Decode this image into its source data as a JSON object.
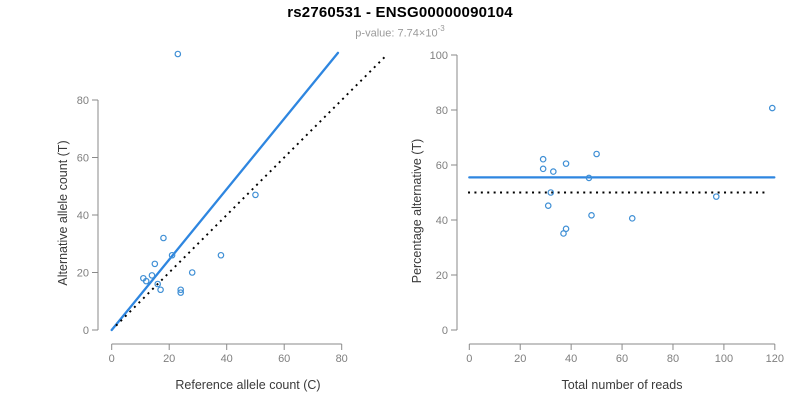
{
  "header": {
    "title": "rs2760531 - ENSG00000090104",
    "pvalue_label": "p-value: 7.74×10",
    "pvalue_exponent": "-3"
  },
  "colors": {
    "line_blue": "#2e86e0",
    "point_blue": "#3f8fd5",
    "dotted_black": "#000000",
    "axis_line": "#8a8a8a",
    "tick_label": "#7f7f7f",
    "axis_title": "#3a3a3a",
    "title_text": "#000000",
    "subtitle_text": "#9a9a9a",
    "background": "#ffffff"
  },
  "chart_data": [
    {
      "id": "allele-counts",
      "type": "scatter",
      "title": "",
      "xlabel": "Reference allele count (C)",
      "ylabel": "Alternative allele count (T)",
      "xticks": [
        0,
        20,
        40,
        60,
        80
      ],
      "yticks": [
        0,
        20,
        40,
        60,
        80
      ],
      "xlim": [
        -4,
        96
      ],
      "ylim": [
        -4,
        96
      ],
      "grid": false,
      "legend": "none",
      "points": [
        [
          23,
          96
        ],
        [
          50,
          47
        ],
        [
          38,
          26
        ],
        [
          28,
          20
        ],
        [
          24,
          14
        ],
        [
          24,
          13
        ],
        [
          21,
          26
        ],
        [
          18,
          32
        ],
        [
          17,
          14
        ],
        [
          16,
          16
        ],
        [
          15,
          23
        ],
        [
          14,
          19
        ],
        [
          12,
          17
        ],
        [
          11,
          18
        ]
      ],
      "lines": [
        {
          "name": "fitted-ratio-line",
          "style": "solid-blue",
          "x1": 0,
          "y1": 0,
          "x2": 78.7,
          "y2": 96.4
        },
        {
          "name": "identity-line",
          "style": "dotted-black",
          "x1": 1.5,
          "y1": 1.5,
          "x2": 95.8,
          "y2": 95.8
        }
      ]
    },
    {
      "id": "percentage-vs-reads",
      "type": "scatter",
      "title": "",
      "xlabel": "Total number of reads",
      "ylabel": "Percentage alternative (T)",
      "xticks": [
        0,
        20,
        40,
        60,
        80,
        100,
        120
      ],
      "yticks": [
        0,
        20,
        40,
        60,
        80,
        100
      ],
      "xlim": [
        -5,
        125
      ],
      "ylim": [
        -4,
        104
      ],
      "grid": false,
      "legend": "none",
      "points": [
        [
          119,
          80.7
        ],
        [
          97,
          48.5
        ],
        [
          64,
          40.6
        ],
        [
          50,
          64
        ],
        [
          48,
          41.7
        ],
        [
          47,
          55.3
        ],
        [
          38,
          60.5
        ],
        [
          38,
          36.8
        ],
        [
          37,
          35.1
        ],
        [
          33,
          57.6
        ],
        [
          32,
          50
        ],
        [
          31,
          45.2
        ],
        [
          29,
          62.1
        ],
        [
          29,
          58.6
        ]
      ],
      "lines": [
        {
          "name": "mean-percentage-line",
          "style": "solid-blue",
          "x1": 0,
          "y1": 55.5,
          "x2": 119.8,
          "y2": 55.5
        },
        {
          "name": "null-50-percent-line",
          "style": "dotted-black",
          "x1": -0.5,
          "y1": 50,
          "x2": 117,
          "y2": 50
        }
      ]
    }
  ]
}
